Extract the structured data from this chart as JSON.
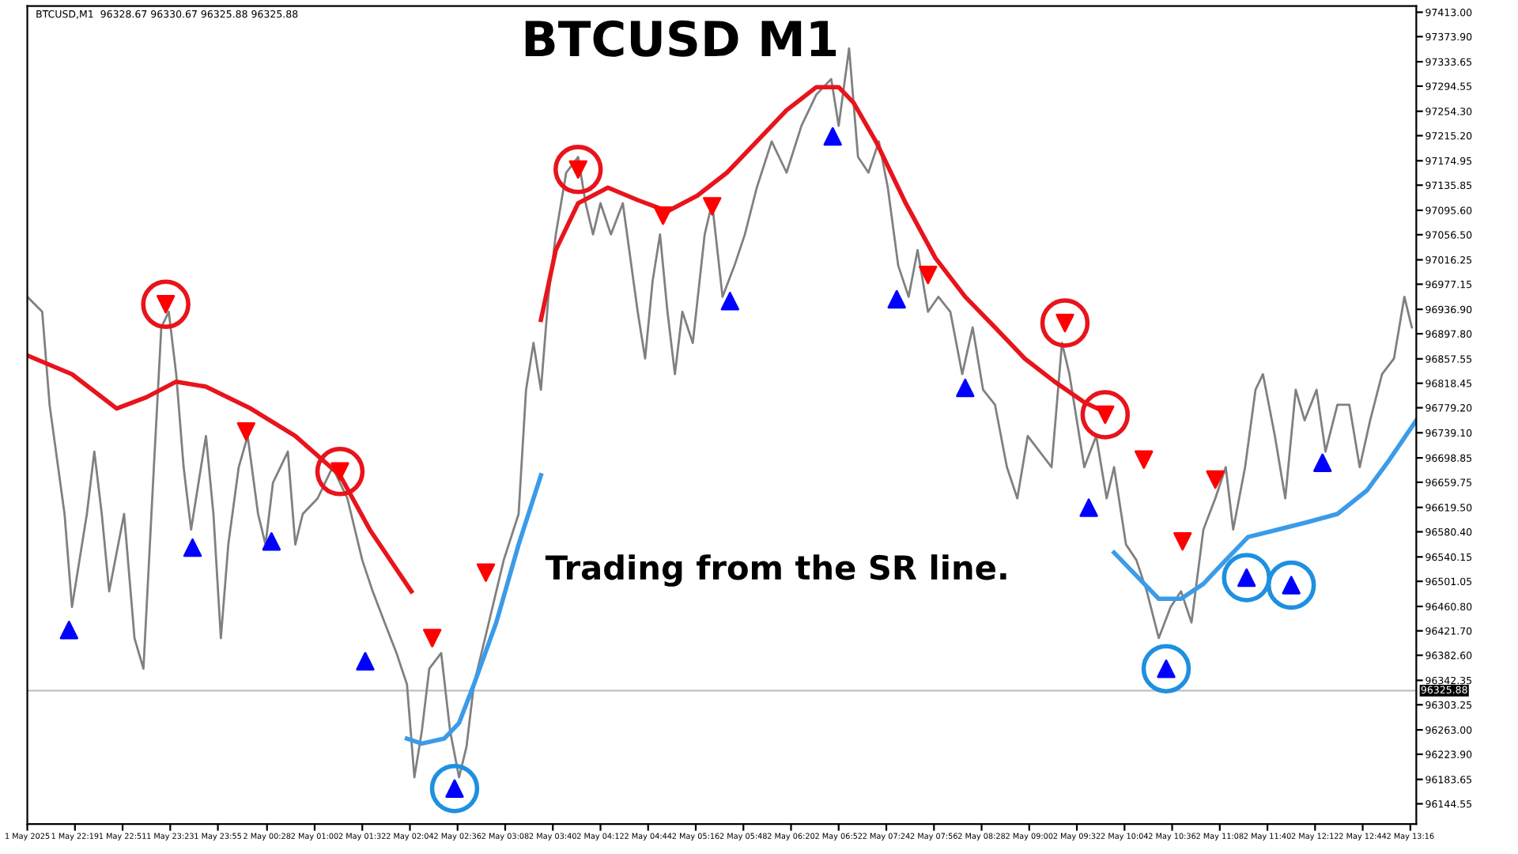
{
  "chart_data": {
    "type": "line",
    "title": "BTCUSD M1",
    "annotations": [
      "BTCUSD,M1  96328.67 96330.67 96325.88 96325.88",
      "Trading from the SR line."
    ],
    "xlim": [
      "2025-05-01T21:47",
      "2025-05-02T13:20"
    ],
    "xticks": [
      {
        "value": "2025-05-01T21:47",
        "label": "1 May 2025"
      },
      {
        "value": "2025-05-01T22:19",
        "label": "1 May 22:19"
      },
      {
        "value": "2025-05-01T22:51",
        "label": "1 May 22:51"
      },
      {
        "value": "2025-05-01T23:23",
        "label": "1 May 23:23"
      },
      {
        "value": "2025-05-01T23:55",
        "label": "1 May 23:55"
      },
      {
        "value": "2025-05-02T00:28",
        "label": "2 May 00:28"
      },
      {
        "value": "2025-05-02T01:00",
        "label": "2 May 01:00"
      },
      {
        "value": "2025-05-02T01:32",
        "label": "2 May 01:32"
      },
      {
        "value": "2025-05-02T02:04",
        "label": "2 May 02:04"
      },
      {
        "value": "2025-05-02T02:36",
        "label": "2 May 02:36"
      },
      {
        "value": "2025-05-02T03:08",
        "label": "2 May 03:08"
      },
      {
        "value": "2025-05-02T03:40",
        "label": "2 May 03:40"
      },
      {
        "value": "2025-05-02T04:12",
        "label": "2 May 04:12"
      },
      {
        "value": "2025-05-02T04:44",
        "label": "2 May 04:44"
      },
      {
        "value": "2025-05-02T05:16",
        "label": "2 May 05:16"
      },
      {
        "value": "2025-05-02T05:48",
        "label": "2 May 05:48"
      },
      {
        "value": "2025-05-02T06:20",
        "label": "2 May 06:20"
      },
      {
        "value": "2025-05-02T06:52",
        "label": "2 May 06:52"
      },
      {
        "value": "2025-05-02T07:24",
        "label": "2 May 07:24"
      },
      {
        "value": "2025-05-02T07:56",
        "label": "2 May 07:56"
      },
      {
        "value": "2025-05-02T08:28",
        "label": "2 May 08:28"
      },
      {
        "value": "2025-05-02T09:00",
        "label": "2 May 09:00"
      },
      {
        "value": "2025-05-02T09:32",
        "label": "2 May 09:32"
      },
      {
        "value": "2025-05-02T10:04",
        "label": "2 May 10:04"
      },
      {
        "value": "2025-05-02T10:36",
        "label": "2 May 10:36"
      },
      {
        "value": "2025-05-02T11:08",
        "label": "2 May 11:08"
      },
      {
        "value": "2025-05-02T11:40",
        "label": "2 May 11:40"
      },
      {
        "value": "2025-05-02T12:12",
        "label": "2 May 12:12"
      },
      {
        "value": "2025-05-02T12:44",
        "label": "2 May 12:44"
      },
      {
        "value": "2025-05-02T13:16",
        "label": "2 May 13:16"
      }
    ],
    "ylim": [
      96112,
      97423
    ],
    "yticks": [
      {
        "value": 97413.0,
        "label": "97413.00"
      },
      {
        "value": 97373.9,
        "label": "97373.90"
      },
      {
        "value": 97333.65,
        "label": "97333.65"
      },
      {
        "value": 97294.55,
        "label": "97294.55"
      },
      {
        "value": 97254.3,
        "label": "97254.30"
      },
      {
        "value": 97215.2,
        "label": "97215.20"
      },
      {
        "value": 97174.95,
        "label": "97174.95"
      },
      {
        "value": 97135.85,
        "label": "97135.85"
      },
      {
        "value": 97095.6,
        "label": "97095.60"
      },
      {
        "value": 97056.5,
        "label": "97056.50"
      },
      {
        "value": 97016.25,
        "label": "97016.25"
      },
      {
        "value": 96977.15,
        "label": "96977.15"
      },
      {
        "value": 96936.9,
        "label": "96936.90"
      },
      {
        "value": 96897.8,
        "label": "96897.80"
      },
      {
        "value": 96857.55,
        "label": "96857.55"
      },
      {
        "value": 96818.45,
        "label": "96818.45"
      },
      {
        "value": 96779.2,
        "label": "96779.20"
      },
      {
        "value": 96739.1,
        "label": "96739.10"
      },
      {
        "value": 96698.85,
        "label": "96698.85"
      },
      {
        "value": 96659.75,
        "label": "96659.75"
      },
      {
        "value": 96619.5,
        "label": "96619.50"
      },
      {
        "value": 96580.4,
        "label": "96580.40"
      },
      {
        "value": 96540.15,
        "label": "96540.15"
      },
      {
        "value": 96501.05,
        "label": "96501.05"
      },
      {
        "value": 96460.8,
        "label": "96460.80"
      },
      {
        "value": 96421.7,
        "label": "96421.70"
      },
      {
        "value": 96382.6,
        "label": "96382.60"
      },
      {
        "value": 96342.35,
        "label": "96342.35"
      },
      {
        "value": 96303.25,
        "label": "96303.25"
      },
      {
        "value": 96263.0,
        "label": "96263.00"
      },
      {
        "value": 96223.9,
        "label": "96223.90"
      },
      {
        "value": 96183.65,
        "label": "96183.65"
      },
      {
        "value": 96144.55,
        "label": "96144.55"
      }
    ],
    "ref_lines": [
      {
        "axis": "y",
        "value": 96325.88,
        "label": "96325.88",
        "color": "#c0c0c0"
      }
    ],
    "grid": false,
    "legend": false,
    "series": [
      {
        "color": "#808080",
        "x": [
          "2025-05-01T21:47",
          "2025-05-01T21:57",
          "2025-05-01T22:02",
          "2025-05-01T22:12",
          "2025-05-01T22:17",
          "2025-05-01T22:27",
          "2025-05-01T22:32",
          "2025-05-01T22:37",
          "2025-05-01T22:42",
          "2025-05-01T22:52",
          "2025-05-01T22:59",
          "2025-05-01T23:05",
          "2025-05-01T23:12",
          "2025-05-01T23:17",
          "2025-05-01T23:22",
          "2025-05-01T23:27",
          "2025-05-01T23:32",
          "2025-05-01T23:37",
          "2025-05-01T23:42",
          "2025-05-01T23:47",
          "2025-05-01T23:52",
          "2025-05-01T23:57",
          "2025-05-02T00:02",
          "2025-05-02T00:09",
          "2025-05-02T00:15",
          "2025-05-02T00:22",
          "2025-05-02T00:27",
          "2025-05-02T00:32",
          "2025-05-02T00:37",
          "2025-05-02T00:42",
          "2025-05-02T00:47",
          "2025-05-02T00:52",
          "2025-05-02T01:02",
          "2025-05-02T01:12",
          "2025-05-02T01:22",
          "2025-05-02T01:32",
          "2025-05-02T01:39",
          "2025-05-02T01:47",
          "2025-05-02T01:55",
          "2025-05-02T02:02",
          "2025-05-02T02:07",
          "2025-05-02T02:12",
          "2025-05-02T02:17",
          "2025-05-02T02:25",
          "2025-05-02T02:31",
          "2025-05-02T02:37",
          "2025-05-02T02:42",
          "2025-05-02T02:47",
          "2025-05-02T02:57",
          "2025-05-02T03:07",
          "2025-05-02T03:17",
          "2025-05-02T03:22",
          "2025-05-02T03:27",
          "2025-05-02T03:32",
          "2025-05-02T03:37",
          "2025-05-02T03:42",
          "2025-05-02T03:49",
          "2025-05-02T03:57",
          "2025-05-02T04:02",
          "2025-05-02T04:07",
          "2025-05-02T04:12",
          "2025-05-02T04:19",
          "2025-05-02T04:27",
          "2025-05-02T04:37",
          "2025-05-02T04:42",
          "2025-05-02T04:47",
          "2025-05-02T04:52",
          "2025-05-02T04:57",
          "2025-05-02T05:02",
          "2025-05-02T05:07",
          "2025-05-02T05:14",
          "2025-05-02T05:22",
          "2025-05-02T05:27",
          "2025-05-02T05:34",
          "2025-05-02T05:42",
          "2025-05-02T05:49",
          "2025-05-02T05:57",
          "2025-05-02T06:07",
          "2025-05-02T06:17",
          "2025-05-02T06:27",
          "2025-05-02T06:37",
          "2025-05-02T06:47",
          "2025-05-02T06:52",
          "2025-05-02T06:59",
          "2025-05-02T07:05",
          "2025-05-02T07:12",
          "2025-05-02T07:19",
          "2025-05-02T07:25",
          "2025-05-02T07:32",
          "2025-05-02T07:39",
          "2025-05-02T07:45",
          "2025-05-02T07:52",
          "2025-05-02T07:59",
          "2025-05-02T08:07",
          "2025-05-02T08:15",
          "2025-05-02T08:22",
          "2025-05-02T08:29",
          "2025-05-02T08:37",
          "2025-05-02T08:45",
          "2025-05-02T08:52",
          "2025-05-02T08:59",
          "2025-05-02T09:07",
          "2025-05-02T09:15",
          "2025-05-02T09:22",
          "2025-05-02T09:27",
          "2025-05-02T09:37",
          "2025-05-02T09:45",
          "2025-05-02T09:52",
          "2025-05-02T09:57",
          "2025-05-02T10:05",
          "2025-05-02T10:12",
          "2025-05-02T10:19",
          "2025-05-02T10:27",
          "2025-05-02T10:35",
          "2025-05-02T10:42",
          "2025-05-02T10:49",
          "2025-05-02T10:57",
          "2025-05-02T11:05",
          "2025-05-02T11:12",
          "2025-05-02T11:17",
          "2025-05-02T11:25",
          "2025-05-02T11:32",
          "2025-05-02T11:37",
          "2025-05-02T11:45",
          "2025-05-02T11:52",
          "2025-05-02T11:59",
          "2025-05-02T12:05",
          "2025-05-02T12:13",
          "2025-05-02T12:19",
          "2025-05-02T12:27",
          "2025-05-02T12:35",
          "2025-05-02T12:42",
          "2025-05-02T12:49",
          "2025-05-02T12:57",
          "2025-05-02T13:05",
          "2025-05-02T13:12",
          "2025-05-02T13:17"
        ],
        "values": [
          96957,
          96933,
          96783,
          96609,
          96460,
          96609,
          96709,
          96609,
          96485,
          96609,
          96410,
          96361,
          96684,
          96908,
          96933,
          96833,
          96684,
          96584,
          96659,
          96734,
          96609,
          96410,
          96560,
          96684,
          96734,
          96609,
          96560,
          96659,
          96684,
          96709,
          96560,
          96609,
          96634,
          96684,
          96634,
          96535,
          96485,
          96435,
          96386,
          96336,
          96187,
          96261,
          96361,
          96386,
          96261,
          96187,
          96236,
          96336,
          96435,
          96535,
          96609,
          96808,
          96883,
          96808,
          96957,
          97057,
          97156,
          97181,
          97107,
          97057,
          97107,
          97057,
          97107,
          96933,
          96858,
          96982,
          97057,
          96933,
          96833,
          96933,
          96883,
          97057,
          97107,
          96957,
          97007,
          97057,
          97132,
          97206,
          97156,
          97231,
          97281,
          97306,
          97231,
          97355,
          97181,
          97156,
          97206,
          97132,
          97007,
          96957,
          97032,
          96933,
          96957,
          96933,
          96833,
          96908,
          96808,
          96784,
          96684,
          96634,
          96734,
          96709,
          96684,
          96883,
          96833,
          96684,
          96734,
          96634,
          96684,
          96560,
          96535,
          96485,
          96410,
          96460,
          96485,
          96435,
          96584,
          96634,
          96684,
          96584,
          96684,
          96808,
          96833,
          96734,
          96634,
          96808,
          96759,
          96808,
          96709,
          96784,
          96784,
          96684,
          96759,
          96833,
          96858,
          96957,
          96908
        ]
      },
      {
        "type": "line",
        "color": "#e8141c",
        "x": [
          "2025-05-01T21:47",
          "2025-05-01T22:17",
          "2025-05-01T22:47",
          "2025-05-01T23:07",
          "2025-05-01T23:27",
          "2025-05-01T23:47",
          "2025-05-02T00:17",
          "2025-05-02T00:47",
          "2025-05-02T01:17",
          "2025-05-02T01:37",
          "2025-05-02T02:05",
          "2025-05-02T02:47",
          "2025-05-02T03:32",
          "2025-05-02T03:42",
          "2025-05-02T03:57",
          "2025-05-02T04:17",
          "2025-05-02T04:37",
          "2025-05-02T04:57",
          "2025-05-02T05:17",
          "2025-05-02T05:37",
          "2025-05-02T05:57",
          "2025-05-02T06:17",
          "2025-05-02T06:37",
          "2025-05-02T06:52",
          "2025-05-02T07:02",
          "2025-05-02T07:17",
          "2025-05-02T07:37",
          "2025-05-02T07:57",
          "2025-05-02T08:17",
          "2025-05-02T08:37",
          "2025-05-02T08:57",
          "2025-05-02T09:17",
          "2025-05-02T09:37",
          "2025-05-02T09:52"
        ],
        "values": [
          96863,
          96833,
          96778,
          96796,
          96821,
          96813,
          96778,
          96734,
          96671,
          96584,
          96485,
          null,
          96920,
          97032,
          97107,
          97132,
          97112,
          97094,
          97119,
          97156,
          97206,
          97256,
          97293,
          97293,
          97268,
          97206,
          97107,
          97019,
          96957,
          96908,
          96858,
          96821,
          96788,
          96771
        ]
      },
      {
        "type": "line",
        "color": "#3b9be8",
        "x": [
          "2025-05-02T02:02",
          "2025-05-02T02:12",
          "2025-05-02T02:27",
          "2025-05-02T02:37",
          "2025-05-02T02:47",
          "2025-05-02T03:02",
          "2025-05-02T03:17",
          "2025-05-02T03:32",
          "2025-05-02T06:07",
          "2025-05-02T09:57",
          "2025-05-02T10:12",
          "2025-05-02T10:27",
          "2025-05-02T10:42",
          "2025-05-02T10:57",
          "2025-05-02T11:12",
          "2025-05-02T11:27",
          "2025-05-02T11:47",
          "2025-05-02T12:07",
          "2025-05-02T12:27",
          "2025-05-02T12:47",
          "2025-05-02T13:02",
          "2025-05-02T13:20"
        ],
        "values": [
          96249,
          96241,
          96249,
          96274,
          96336,
          96435,
          96560,
          96671,
          null,
          96547,
          96510,
          96473,
          96473,
          96497,
          96535,
          96572,
          96584,
          96596,
          96609,
          96647,
          96696,
          96759
        ]
      },
      {
        "type": "scatter",
        "marker": "triangle",
        "color": "#ff0000",
        "x": [
          "2025-05-01T23:20",
          "2025-05-02T00:14",
          "2025-05-02T01:17",
          "2025-05-02T02:19",
          "2025-05-02T02:55",
          "2025-05-02T03:57",
          "2025-05-02T04:54",
          "2025-05-02T05:27",
          "2025-05-02T07:52",
          "2025-05-02T09:24",
          "2025-05-02T09:51",
          "2025-05-02T10:17",
          "2025-05-02T10:43",
          "2025-05-02T11:05"
        ],
        "values": [
          96945,
          96741,
          96677,
          96410,
          96515,
          97161,
          97087,
          97102,
          96992,
          96915,
          96768,
          96696,
          96565,
          96664
        ]
      },
      {
        "type": "scatter",
        "marker": "triangle",
        "color": "#0000ff",
        "x": [
          "2025-05-01T22:15",
          "2025-05-01T23:38",
          "2025-05-02T00:31",
          "2025-05-02T01:34",
          "2025-05-02T02:34",
          "2025-05-02T05:39",
          "2025-05-02T06:48",
          "2025-05-02T07:31",
          "2025-05-02T08:17",
          "2025-05-02T09:40",
          "2025-05-02T10:32",
          "2025-05-02T11:26",
          "2025-05-02T11:56",
          "2025-05-02T12:17"
        ],
        "values": [
          96423,
          96555,
          96565,
          96373,
          96169,
          96950,
          97214,
          96953,
          96811,
          96619,
          96361,
          96507,
          96495,
          96691
        ]
      },
      {
        "type": "scatter",
        "marker": "circle",
        "color": "#e8141c",
        "x": [
          "2025-05-01T23:20",
          "2025-05-02T01:17",
          "2025-05-02T03:57",
          "2025-05-02T09:24",
          "2025-05-02T09:51"
        ],
        "values": [
          96945,
          96677,
          97161,
          96915,
          96768
        ]
      },
      {
        "type": "scatter",
        "marker": "circle",
        "color": "#1e90e0",
        "x": [
          "2025-05-02T02:34",
          "2025-05-02T10:32",
          "2025-05-02T11:26",
          "2025-05-02T11:56"
        ],
        "values": [
          96169,
          96361,
          96507,
          96495
        ]
      }
    ]
  }
}
